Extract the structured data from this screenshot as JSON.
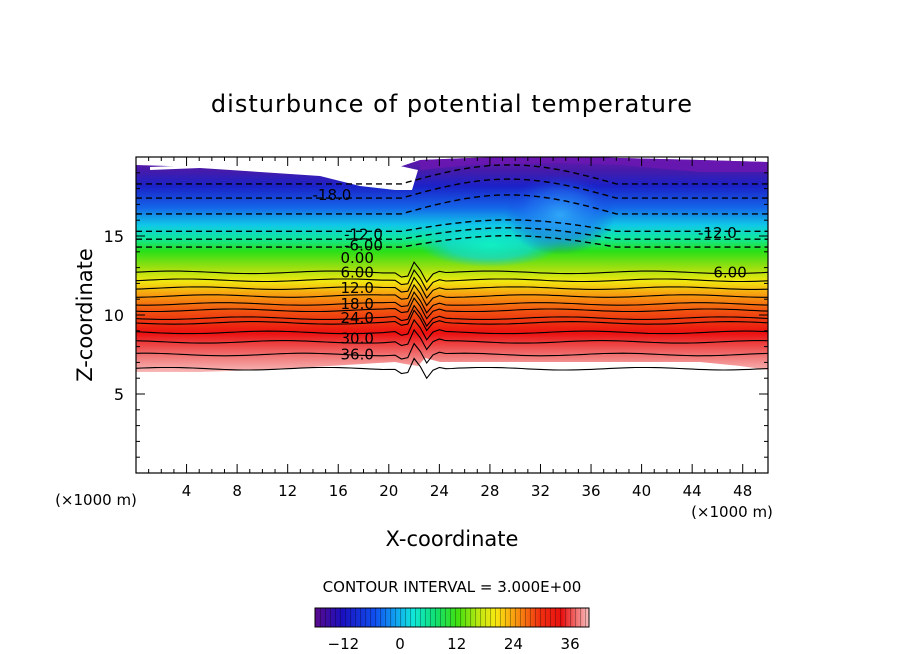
{
  "chart_data": {
    "type": "heatmap",
    "title": "disturbunce of potential temperature",
    "xlabel": "X-coordinate",
    "ylabel": "Z-coordinate",
    "x_unit_label": "(×1000 m)",
    "z_unit_label": "(×1000 m)",
    "xlim": [
      0,
      50
    ],
    "ylim": [
      0,
      20
    ],
    "x_ticks": [
      4,
      8,
      12,
      16,
      20,
      24,
      28,
      32,
      36,
      40,
      44,
      48
    ],
    "y_ticks": [
      5,
      10,
      15
    ],
    "contour_interval_text": "CONTOUR INTERVAL = 3.000E+00",
    "contour_interval": 3.0,
    "colorbar": {
      "range": [
        -18,
        40
      ],
      "tick_values": [
        -12,
        0,
        12,
        24,
        36
      ],
      "tick_labels": [
        "−12",
        "0",
        "12",
        "24",
        "36"
      ]
    },
    "left_contour_labels": [
      {
        "text": "36.0",
        "x": 17.5,
        "z": 7.5
      },
      {
        "text": "30.0",
        "x": 17.5,
        "z": 8.5
      },
      {
        "text": "24.0",
        "x": 17.5,
        "z": 9.8
      },
      {
        "text": "18.0",
        "x": 17.5,
        "z": 10.7
      },
      {
        "text": "12.0",
        "x": 17.5,
        "z": 11.7
      },
      {
        "text": "6.00",
        "x": 17.5,
        "z": 12.7
      },
      {
        "text": "0.00",
        "x": 17.5,
        "z": 13.6
      },
      {
        "text": "-6.00",
        "x": 18.0,
        "z": 14.4
      },
      {
        "text": "-12.0",
        "x": 18.0,
        "z": 15.1
      },
      {
        "text": "-18.0",
        "x": 15.5,
        "z": 17.6
      }
    ],
    "right_contour_labels": [
      {
        "text": "-12.0",
        "x": 46.0,
        "z": 15.2
      },
      {
        "text": "6.00",
        "x": 47.0,
        "z": 12.7
      }
    ]
  }
}
